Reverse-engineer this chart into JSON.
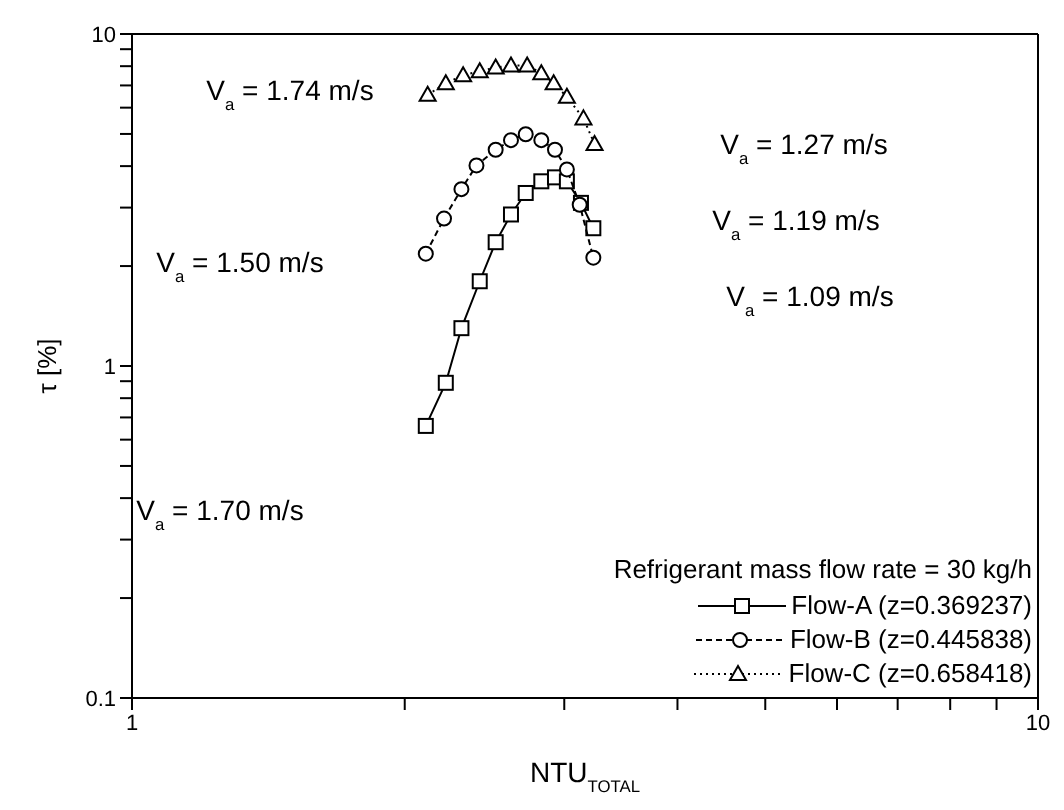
{
  "chart_data": {
    "type": "line",
    "xlabel": "NTU$_{TOTAL}$",
    "ylabel": "τ [%]",
    "log": "xy",
    "xlim": [
      1,
      10
    ],
    "ylim": [
      0.1,
      10
    ],
    "xticks": [
      1,
      {
        "value": 2,
        "label": null
      },
      {
        "value": 3,
        "label": null
      },
      {
        "value": 4,
        "label": null
      },
      {
        "value": 5,
        "label": null
      },
      {
        "value": 6,
        "label": null
      },
      {
        "value": 7,
        "label": null
      },
      {
        "value": 8,
        "label": null
      },
      {
        "value": 9,
        "label": null
      },
      10
    ],
    "yticks": [
      0.1,
      {
        "value": 0.2,
        "label": null
      },
      {
        "value": 0.3,
        "label": null
      },
      {
        "value": 0.4,
        "label": null
      },
      {
        "value": 0.5,
        "label": null
      },
      {
        "value": 0.6,
        "label": null
      },
      {
        "value": 0.7,
        "label": null
      },
      {
        "value": 0.8,
        "label": null
      },
      {
        "value": 0.9,
        "label": null
      },
      1,
      {
        "value": 2,
        "label": null
      },
      {
        "value": 3,
        "label": null
      },
      {
        "value": 4,
        "label": null
      },
      {
        "value": 5,
        "label": null
      },
      {
        "value": 6,
        "label": null
      },
      {
        "value": 7,
        "label": null
      },
      {
        "value": 8,
        "label": null
      },
      {
        "value": 9,
        "label": null
      },
      10
    ],
    "legend": "bottom right",
    "legend_title": "Refrigerant mass flow rate = 30 kg/h",
    "series": [
      {
        "name": "Flow-A (z=0.369237)",
        "color": "#000000",
        "marker": "square",
        "line_style": "solid",
        "x": [
          2.11,
          2.22,
          2.31,
          2.42,
          2.52,
          2.62,
          2.72,
          2.83,
          2.93,
          3.02,
          3.13,
          3.23
        ],
        "values": [
          0.66,
          0.89,
          1.3,
          1.8,
          2.36,
          2.86,
          3.32,
          3.6,
          3.7,
          3.6,
          3.1,
          2.6
        ]
      },
      {
        "name": "Flow-B (z=0.445838)",
        "color": "#000000",
        "marker": "circle",
        "line_style": "dashed",
        "x": [
          2.11,
          2.21,
          2.31,
          2.4,
          2.52,
          2.62,
          2.72,
          2.83,
          2.93,
          3.02,
          3.12,
          3.23
        ],
        "values": [
          2.18,
          2.78,
          3.41,
          4.02,
          4.48,
          4.79,
          4.99,
          4.79,
          4.48,
          3.91,
          3.06,
          2.12
        ]
      },
      {
        "name": "Flow-C (z=0.658418)",
        "color": "#000000",
        "marker": "triangle",
        "line_style": "dotted",
        "x": [
          2.12,
          2.22,
          2.32,
          2.42,
          2.52,
          2.62,
          2.73,
          2.83,
          2.92,
          3.02,
          3.15,
          3.24
        ],
        "values": [
          6.56,
          7.11,
          7.51,
          7.72,
          7.93,
          8.04,
          8.04,
          7.62,
          7.11,
          6.47,
          5.57,
          4.66
        ]
      }
    ],
    "annotations": [
      "V$_{a}$ = 1.74 m/s",
      "V$_{a}$ = 1.50 m/s",
      "V$_{a}$ = 1.70 m/s",
      "V$_{a}$ = 1.27 m/s",
      "V$_{a}$ = 1.19 m/s",
      "V$_{a}$ = 1.09 m/s"
    ]
  }
}
